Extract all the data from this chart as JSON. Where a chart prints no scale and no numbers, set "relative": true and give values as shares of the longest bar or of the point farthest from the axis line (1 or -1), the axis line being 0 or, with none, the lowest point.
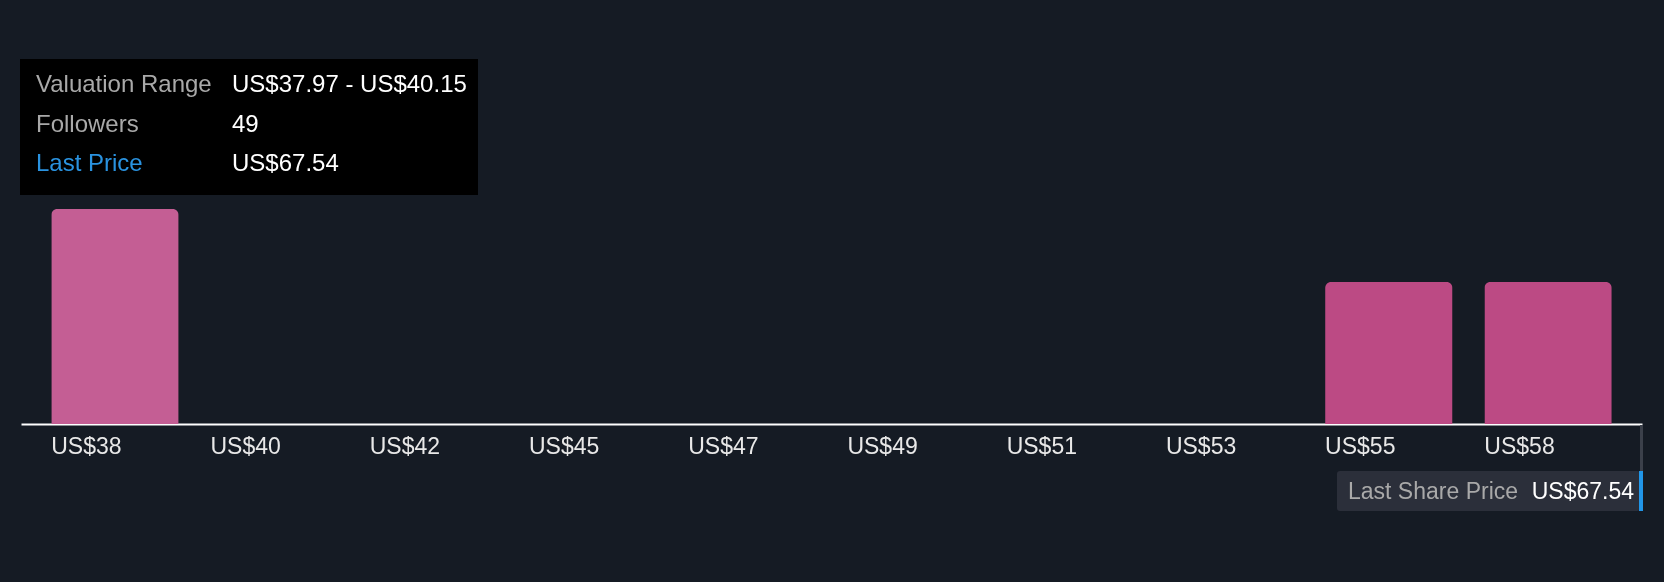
{
  "chart_data": {
    "type": "bar",
    "categories": [
      "US$38",
      "US$40",
      "US$42",
      "US$45",
      "US$47",
      "US$49",
      "US$51",
      "US$53",
      "US$55",
      "US$58"
    ],
    "values": [
      1,
      0,
      0,
      0,
      0,
      0,
      0,
      0,
      0.66,
      0.66
    ],
    "colors": [
      "#c45e94",
      "#bc4a84",
      "#bc4a84",
      "#bc4a84",
      "#bc4a84",
      "#bc4a84",
      "#bc4a84",
      "#bc4a84",
      "#bc4a84",
      "#bc4a84"
    ],
    "relative": true,
    "annotations": [
      "Valuation Range",
      "US$37.97 - US$40.15",
      "Followers",
      "49",
      "Last Price",
      "US$67.54",
      "Last Share Price",
      "US$67.54"
    ]
  }
}
